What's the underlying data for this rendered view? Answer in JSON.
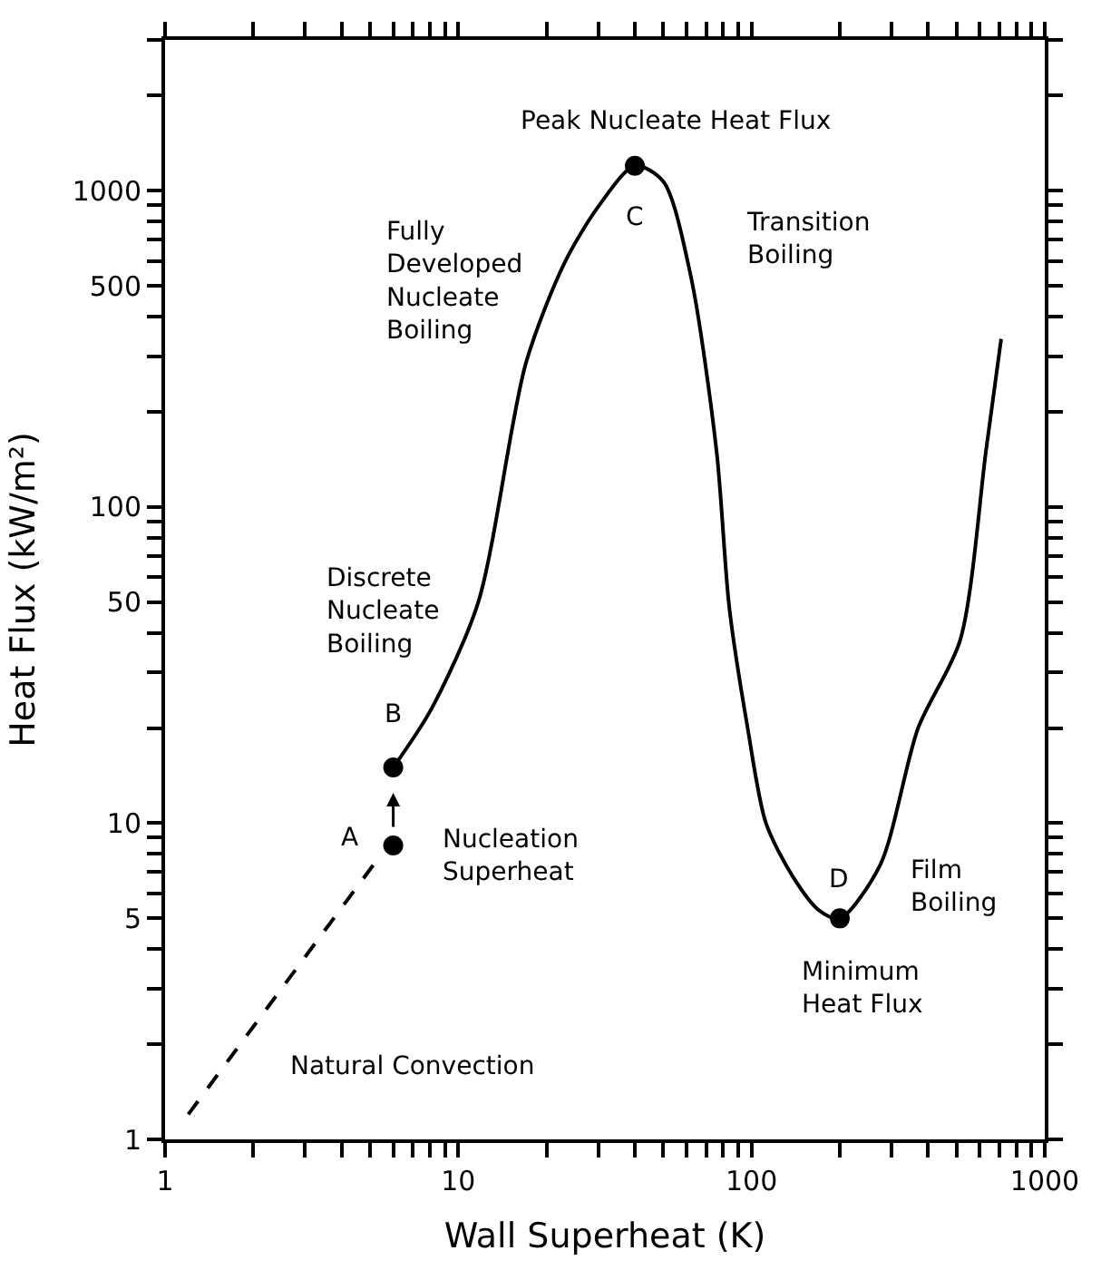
{
  "chart_data": {
    "type": "line",
    "xlabel": "Wall Superheat (K)",
    "ylabel": "Heat Flux (kW/m²)",
    "log": "xy",
    "xlim": [
      1,
      1000
    ],
    "ylim": [
      1,
      3000
    ],
    "xticks": [
      1,
      {
        "value": 2,
        "label": null
      },
      {
        "value": 3,
        "label": null
      },
      {
        "value": 4,
        "label": null
      },
      {
        "value": 5,
        "label": null
      },
      {
        "value": 6,
        "label": null
      },
      {
        "value": 7,
        "label": null
      },
      {
        "value": 8,
        "label": null
      },
      {
        "value": 9,
        "label": null
      },
      10,
      {
        "value": 20,
        "label": null
      },
      {
        "value": 30,
        "label": null
      },
      {
        "value": 40,
        "label": null
      },
      {
        "value": 50,
        "label": null
      },
      {
        "value": 60,
        "label": null
      },
      {
        "value": 70,
        "label": null
      },
      {
        "value": 80,
        "label": null
      },
      {
        "value": 90,
        "label": null
      },
      100,
      {
        "value": 200,
        "label": null
      },
      {
        "value": 300,
        "label": null
      },
      {
        "value": 400,
        "label": null
      },
      {
        "value": 500,
        "label": null
      },
      {
        "value": 600,
        "label": null
      },
      {
        "value": 700,
        "label": null
      },
      {
        "value": 800,
        "label": null
      },
      {
        "value": 900,
        "label": null
      },
      1000
    ],
    "yticks": [
      1,
      {
        "value": 2,
        "label": null
      },
      {
        "value": 3,
        "label": null
      },
      {
        "value": 4,
        "label": null
      },
      5,
      {
        "value": 6,
        "label": null
      },
      {
        "value": 7,
        "label": null
      },
      {
        "value": 8,
        "label": null
      },
      {
        "value": 9,
        "label": null
      },
      10,
      {
        "value": 20,
        "label": null
      },
      {
        "value": 30,
        "label": null
      },
      {
        "value": 40,
        "label": null
      },
      50,
      {
        "value": 60,
        "label": null
      },
      {
        "value": 70,
        "label": null
      },
      {
        "value": 80,
        "label": null
      },
      {
        "value": 90,
        "label": null
      },
      100,
      {
        "value": 200,
        "label": null
      },
      {
        "value": 300,
        "label": null
      },
      {
        "value": 400,
        "label": null
      },
      500,
      {
        "value": 600,
        "label": null
      },
      {
        "value": 700,
        "label": null
      },
      {
        "value": 800,
        "label": null
      },
      {
        "value": 900,
        "label": null
      },
      1000,
      {
        "value": 2000,
        "label": null
      },
      {
        "value": 3000,
        "label": null
      }
    ],
    "series": [
      {
        "line_style": "dashed",
        "marker": "none",
        "color": "#000000",
        "x": [
          1.2,
          5.2
        ],
        "values": [
          1.2,
          7.5
        ]
      },
      {
        "line_style": "solid",
        "marker": "none",
        "color": "#000000",
        "x": [
          6,
          8.1,
          11.7,
          17,
          23,
          30,
          40,
          50,
          62,
          76,
          84,
          97,
          112,
          138,
          170,
          200,
          275,
          370,
          515,
          630,
          710
        ],
        "values": [
          15,
          23,
          50,
          285,
          590,
          890,
          1200,
          1070,
          540,
          150,
          48,
          20,
          10,
          6.8,
          5.3,
          5,
          7.4,
          20,
          38,
          150,
          340
        ]
      },
      {
        "type": "scatter",
        "marker": "circle",
        "color": "#000000",
        "x": [
          6,
          6,
          40,
          200
        ],
        "values": [
          8.5,
          15,
          1200,
          5
        ]
      }
    ],
    "annotations": [
      "Peak Nucleate Heat Flux",
      "C",
      "Fully\nDeveloped\nNucleate\nBoiling",
      "Transition\nBoiling",
      "Discrete\nNucleate\nBoiling",
      "B",
      "A",
      "Nucleation\nSuperheat",
      "D",
      "Film\nBoiling",
      "Minimum\nHeat Flux",
      "Natural Convection"
    ]
  }
}
